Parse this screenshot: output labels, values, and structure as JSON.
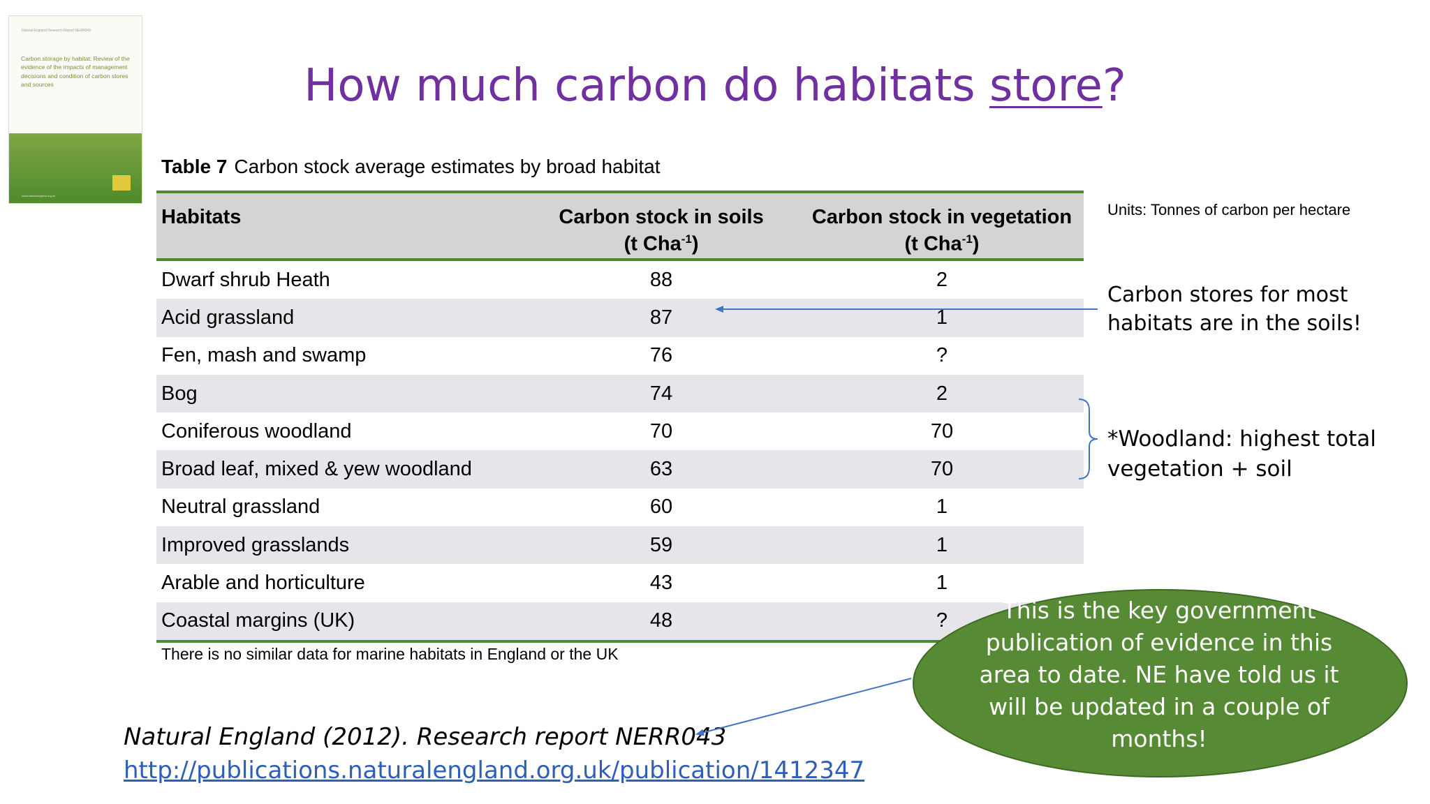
{
  "slide": {
    "title_main": "How much carbon do habitats ",
    "title_underlined": "store",
    "title_end": "?"
  },
  "cover": {
    "header": "Natural England Research Report NERR043",
    "title": "Carbon storage by habitat: Review of the evidence of the impacts of management decisions and condition of carbon stores and sources",
    "footer": "www.naturalengland.org.uk",
    "colors": {
      "green": "#4e8a2c",
      "logo": "#e2c93c"
    }
  },
  "table": {
    "caption_label": "Table 7",
    "caption_text": "Carbon stock average estimates by broad habitat",
    "headers": {
      "habitats": "Habitats",
      "soils_line1": "Carbon stock in soils",
      "soils_unit_pre": "(t Cha",
      "soils_unit_sup": "-1",
      "soils_unit_post": ")",
      "veg_line1": "Carbon stock in vegetation",
      "veg_unit_pre": "(t Cha",
      "veg_unit_sup": "-1",
      "veg_unit_post": ")"
    },
    "rows": [
      {
        "habitat": "Dwarf shrub Heath",
        "soils": "88",
        "vegetation": "2"
      },
      {
        "habitat": "Acid grassland",
        "soils": "87",
        "vegetation": "1"
      },
      {
        "habitat": "Fen, mash and swamp",
        "soils": "76",
        "vegetation": "?"
      },
      {
        "habitat": "Bog",
        "soils": "74",
        "vegetation": "2"
      },
      {
        "habitat": "Coniferous woodland",
        "soils": "70",
        "vegetation": "70"
      },
      {
        "habitat": "Broad leaf, mixed & yew woodland",
        "soils": "63",
        "vegetation": "70"
      },
      {
        "habitat": "Neutral grassland",
        "soils": "60",
        "vegetation": "1"
      },
      {
        "habitat": "Improved grasslands",
        "soils": "59",
        "vegetation": "1"
      },
      {
        "habitat": "Arable and horticulture",
        "soils": "43",
        "vegetation": "1"
      },
      {
        "habitat": "Coastal margins (UK)",
        "soils": "48",
        "vegetation": "?"
      }
    ],
    "footnote": "There is no similar data for marine habitats in England or the UK",
    "colors": {
      "rule": "#4e8a2c",
      "header_bg": "#d4d4d4",
      "stripe": "#e6e6ea"
    }
  },
  "notes": {
    "units": "Units: Tonnes of carbon per hectare",
    "soil": "Carbon stores for most habitats are in the soils!",
    "woodland": "*Woodland: highest total vegetation + soil"
  },
  "citation": {
    "text": "Natural England (2012). Research report NERR043",
    "link": "http://publications.naturalengland.org.uk/publication/1412347"
  },
  "callout": {
    "text": "This is the key government publication of evidence in this area to date.  NE have told us it will be updated in a couple of months!",
    "colors": {
      "fill": "#568a35",
      "arrow": "#4472c4"
    }
  }
}
